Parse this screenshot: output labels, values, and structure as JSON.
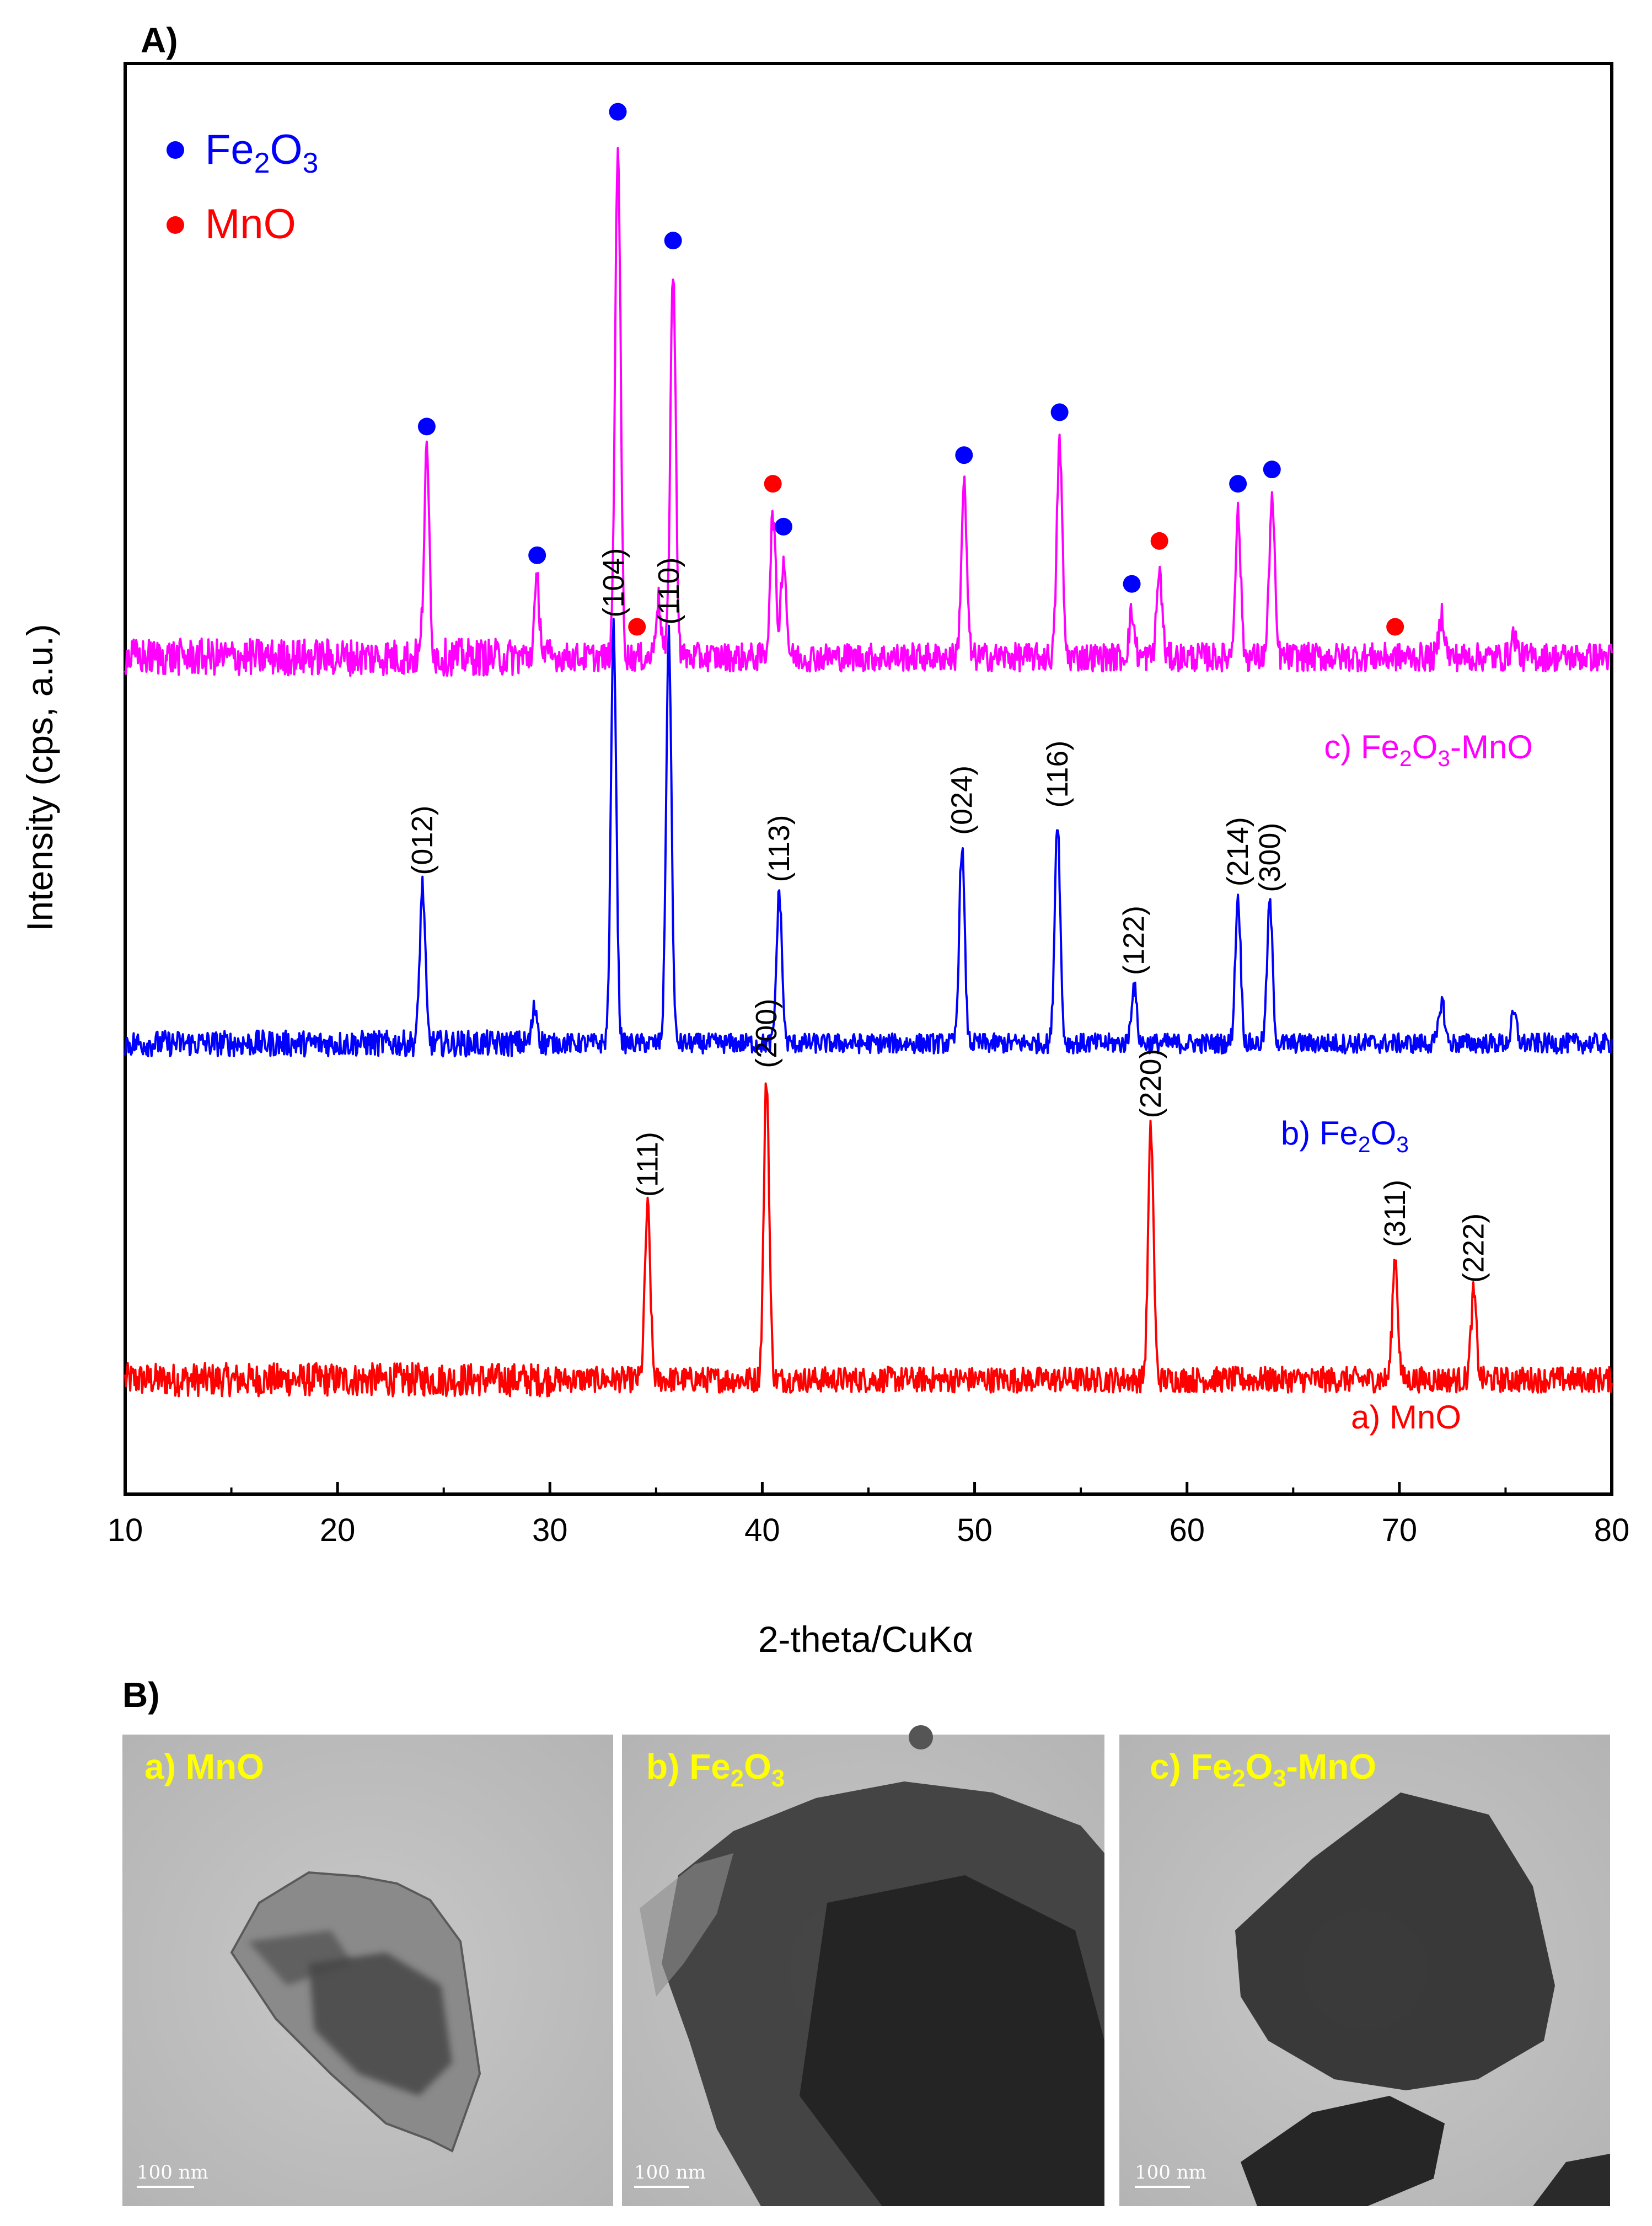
{
  "panel_a": {
    "label": "A)",
    "ylabel": "Intensity (cps, a.u.)",
    "xlabel": "2-theta/CuKα",
    "legend": [
      {
        "name": "Fe2O3",
        "base": "Fe",
        "s1": "2",
        "mid": "O",
        "s2": "3",
        "rest": "",
        "color": "#0000ff"
      },
      {
        "name": "MnO",
        "text": "MnO",
        "color": "#ff0000"
      }
    ]
  },
  "panel_b": {
    "label": "B)",
    "images": [
      {
        "id": "mno",
        "title_prefix": "a) MnO",
        "scale": "100 nm"
      },
      {
        "id": "fe2o3",
        "title_prefix": "b) Fe",
        "s1": "2",
        "mid": "O",
        "s2": "3",
        "rest": "",
        "scale": "100 nm"
      },
      {
        "id": "composite",
        "title_prefix": "c) Fe",
        "s1": "2",
        "mid": "O",
        "s2": "3",
        "rest": "-MnO",
        "scale": "100 nm"
      }
    ]
  },
  "chart_data": {
    "type": "line",
    "title": "",
    "xlabel": "2-theta/CuKα",
    "ylabel": "Intensity (cps, a.u.)",
    "xlim": [
      10,
      80
    ],
    "xticks": [
      10,
      20,
      30,
      40,
      50,
      60,
      70,
      80
    ],
    "ylim": [
      0,
      1
    ],
    "yticks_shown": false,
    "series": [
      {
        "name": "a) MnO",
        "label_parts": {
          "a": "a) MnO",
          "s1": "",
          "mid": "",
          "s2": "",
          "rest": ""
        },
        "color": "#ff0000",
        "offset": 0.08,
        "noise": 0.018,
        "peaks": [
          {
            "x": 34.6,
            "h": 0.12,
            "hkl": "(111)"
          },
          {
            "x": 40.2,
            "h": 0.21,
            "hkl": "(200)"
          },
          {
            "x": 58.3,
            "h": 0.175,
            "hkl": "(220)"
          },
          {
            "x": 69.8,
            "h": 0.085,
            "hkl": "(311)"
          },
          {
            "x": 73.5,
            "h": 0.06,
            "hkl": "(222)"
          }
        ]
      },
      {
        "name": "b) Fe2O3",
        "label_parts": {
          "a": "b) Fe",
          "s1": "2",
          "mid": "O",
          "s2": "3",
          "rest": ""
        },
        "color": "#0000ff",
        "offset": 0.315,
        "noise": 0.014,
        "peaks": [
          {
            "x": 24.0,
            "h": 0.11,
            "hkl": "(012)"
          },
          {
            "x": 29.3,
            "h": 0.025,
            "hkl": ""
          },
          {
            "x": 33.0,
            "h": 0.29,
            "hkl": "(104)"
          },
          {
            "x": 35.6,
            "h": 0.285,
            "hkl": "(110)"
          },
          {
            "x": 40.8,
            "h": 0.105,
            "hkl": "(113)"
          },
          {
            "x": 49.4,
            "h": 0.138,
            "hkl": "(024)"
          },
          {
            "x": 53.9,
            "h": 0.157,
            "hkl": "(116)"
          },
          {
            "x": 57.5,
            "h": 0.04,
            "hkl": "(122)"
          },
          {
            "x": 62.4,
            "h": 0.102,
            "hkl": "(214)"
          },
          {
            "x": 63.9,
            "h": 0.098,
            "hkl": "(300)"
          },
          {
            "x": 72.0,
            "h": 0.03,
            "hkl": ""
          },
          {
            "x": 75.4,
            "h": 0.02,
            "hkl": ""
          }
        ]
      },
      {
        "name": "c) Fe2O3-MnO",
        "label_parts": {
          "a": "c) Fe",
          "s1": "2",
          "mid": "O",
          "s2": "3",
          "rest": "-MnO"
        },
        "color": "#ff00ff",
        "offset": 0.585,
        "noise": 0.02,
        "peaks": [
          {
            "x": 24.2,
            "h": 0.14,
            "marker": "Fe2O3"
          },
          {
            "x": 29.4,
            "h": 0.05,
            "marker": "Fe2O3"
          },
          {
            "x": 33.2,
            "h": 0.36,
            "marker": "Fe2O3"
          },
          {
            "x": 34.1,
            "h": 0.0,
            "marker": "MnO"
          },
          {
            "x": 35.1,
            "h": 0.04,
            "marker": ""
          },
          {
            "x": 35.8,
            "h": 0.27,
            "marker": "Fe2O3"
          },
          {
            "x": 40.5,
            "h": 0.1,
            "marker": "MnO"
          },
          {
            "x": 41.0,
            "h": 0.07,
            "marker": "Fe2O3"
          },
          {
            "x": 49.5,
            "h": 0.12,
            "marker": "Fe2O3"
          },
          {
            "x": 54.0,
            "h": 0.15,
            "marker": "Fe2O3"
          },
          {
            "x": 57.4,
            "h": 0.03,
            "marker": "Fe2O3"
          },
          {
            "x": 58.7,
            "h": 0.06,
            "marker": "MnO"
          },
          {
            "x": 62.4,
            "h": 0.1,
            "marker": "Fe2O3"
          },
          {
            "x": 64.0,
            "h": 0.11,
            "marker": "Fe2O3"
          },
          {
            "x": 69.8,
            "h": 0.0,
            "marker": "MnO"
          },
          {
            "x": 72.0,
            "h": 0.03,
            "marker": ""
          },
          {
            "x": 75.4,
            "h": 0.015,
            "marker": ""
          }
        ]
      }
    ],
    "legend_position": "top-left"
  }
}
